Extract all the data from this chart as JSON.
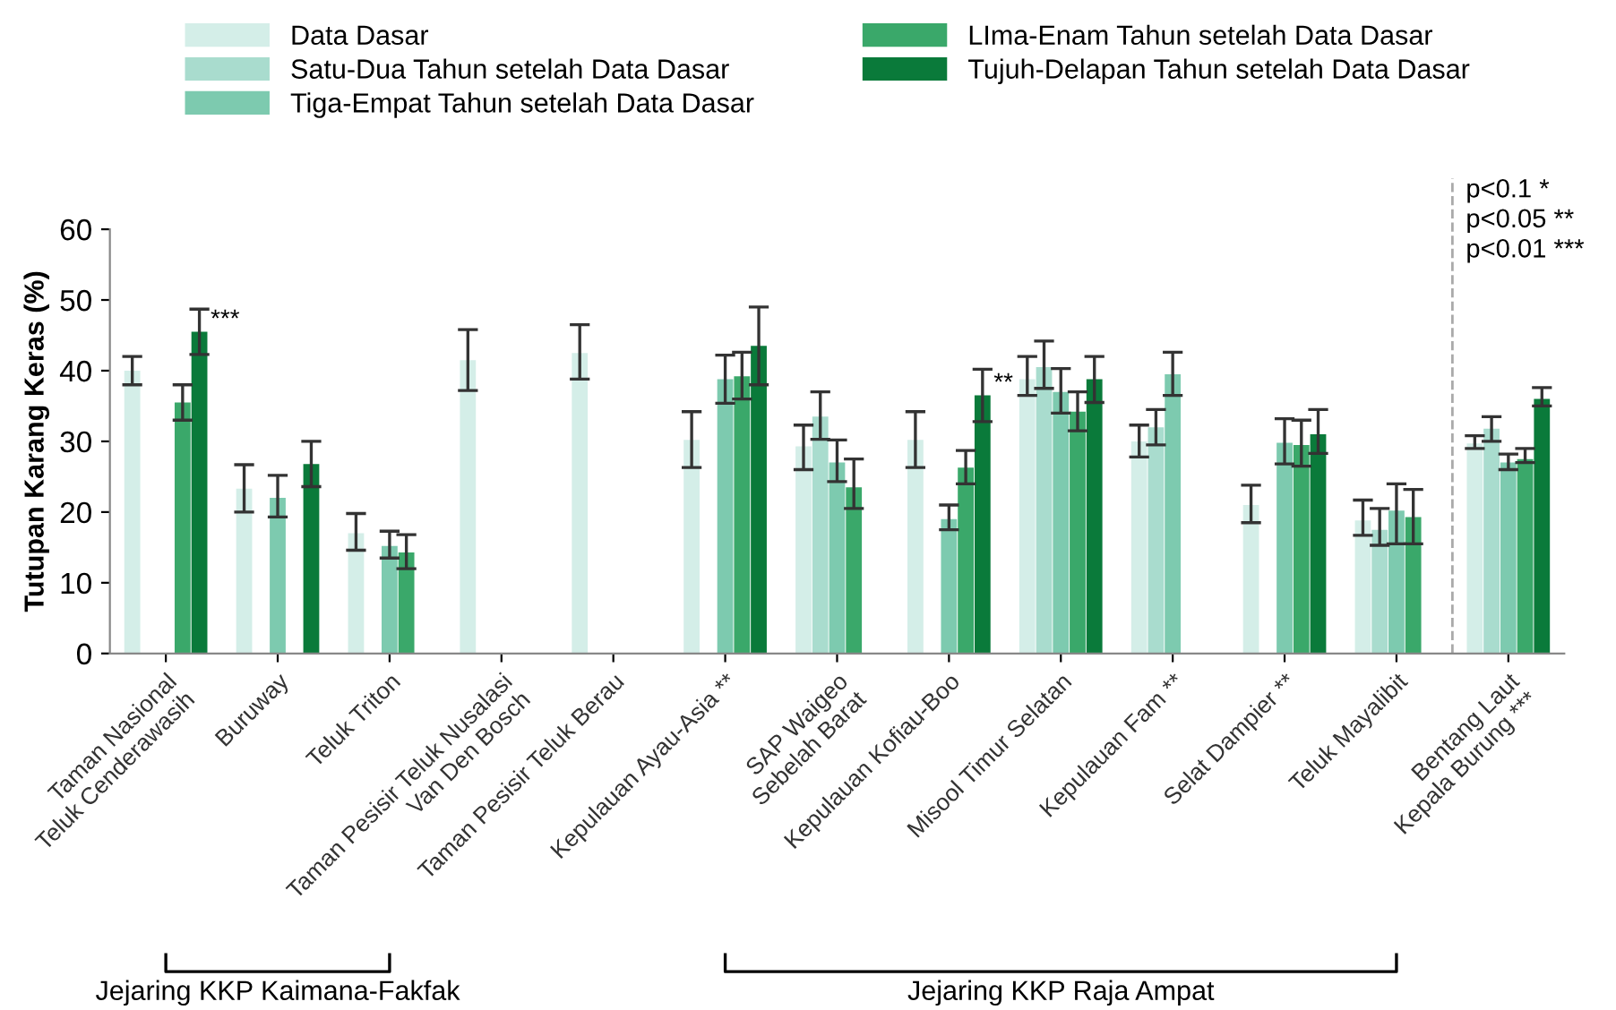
{
  "chart_data": {
    "type": "bar",
    "ylabel": "Tutupan Karang Keras (%)",
    "categories": [
      "Taman Nasional\nTeluk Cenderawasih",
      "Buruway",
      "Teluk Triton",
      "Taman Pesisir Teluk Nusalasi\nVan Den Bosch",
      "Taman Pesisir Teluk Berau",
      "Kepulauan Ayau-Asia **",
      "SAP Waigeo\nSebelah Barat",
      "Kepulauan Kofiau-Boo",
      "Misool Timur Selatan",
      "Kepulauan Fam **",
      "Selat Dampier **",
      "Teluk Mayalibit",
      "Bentang Laut\nKepala Burung ***"
    ],
    "series": [
      {
        "name": "Data Dasar",
        "color": "#d4eee8",
        "values": [
          40,
          23.3,
          17,
          41.5,
          42.5,
          30.2,
          29.3,
          30.2,
          38.8,
          30,
          21,
          18.8,
          29.7
        ],
        "errors": [
          [
            38,
            42
          ],
          [
            20,
            26.7
          ],
          [
            14.6,
            19.8
          ],
          [
            37.2,
            45.8
          ],
          [
            38.8,
            46.5
          ],
          [
            26.3,
            34.2
          ],
          [
            26,
            32.3
          ],
          [
            26.3,
            34.2
          ],
          [
            36.5,
            42
          ],
          [
            27.8,
            32.3
          ],
          [
            18.5,
            23.8
          ],
          [
            16.7,
            21.7
          ],
          [
            29,
            30.8
          ]
        ]
      },
      {
        "name": "Satu-Dua Tahun setelah Data Dasar",
        "color": "#a9dcce",
        "values": [
          null,
          null,
          null,
          null,
          null,
          null,
          33.5,
          null,
          40.5,
          32,
          null,
          17.5,
          31.8
        ],
        "errors": [
          null,
          null,
          null,
          null,
          null,
          null,
          [
            30.3,
            37
          ],
          null,
          [
            37.5,
            44.2
          ],
          [
            29.5,
            34.5
          ],
          null,
          [
            15.3,
            20.5
          ],
          [
            30,
            33.5
          ]
        ]
      },
      {
        "name": "Tiga-Empat Tahun setelah Data Dasar",
        "color": "#7dcaaf",
        "values": [
          null,
          22,
          15.2,
          null,
          null,
          38.8,
          27,
          19,
          37,
          39.5,
          29.8,
          20.2,
          27
        ],
        "errors": [
          null,
          [
            19.3,
            25.2
          ],
          [
            13.5,
            17.3
          ],
          null,
          null,
          [
            35.4,
            42.2
          ],
          [
            24.3,
            30.2
          ],
          [
            17.5,
            21
          ],
          [
            34,
            40.3
          ],
          [
            36.5,
            42.6
          ],
          [
            26.8,
            33.2
          ],
          [
            15.5,
            24
          ],
          [
            26,
            28.2
          ]
        ]
      },
      {
        "name": "LIma-Enam Tahun setelah Data Dasar",
        "color": "#3aa86a",
        "values": [
          35.5,
          null,
          14.3,
          null,
          null,
          39.2,
          23.5,
          26.3,
          34.2,
          null,
          29.5,
          19.3,
          27.5
        ],
        "errors": [
          [
            33,
            38
          ],
          null,
          [
            12,
            16.8
          ],
          null,
          null,
          [
            36,
            42.6
          ],
          [
            20.5,
            27.5
          ],
          [
            24,
            28.7
          ],
          [
            31.5,
            37
          ],
          null,
          [
            26.5,
            33
          ],
          [
            15.5,
            23.2
          ],
          [
            27,
            29
          ]
        ]
      },
      {
        "name": "Tujuh-Delapan Tahun setelah Data Dasar",
        "color": "#0a7a3a",
        "values": [
          45.5,
          26.8,
          null,
          null,
          null,
          43.5,
          null,
          36.5,
          38.8,
          null,
          31,
          null,
          36
        ],
        "errors": [
          [
            42.3,
            48.7
          ],
          [
            23.6,
            30
          ],
          null,
          null,
          null,
          [
            38,
            49
          ],
          null,
          [
            32.8,
            40.2
          ],
          [
            35.5,
            42
          ],
          null,
          [
            28.3,
            34.5
          ],
          null,
          [
            35,
            37.6
          ]
        ]
      }
    ],
    "ylim": [
      0,
      60
    ],
    "yticks": [
      0,
      10,
      20,
      30,
      40,
      50,
      60
    ],
    "annotations": [
      "***",
      "**",
      "p<0.1 *\np<0.05 **\np<0.01 ***",
      "Jejaring KKP Kaimana-Fakfak",
      "Jejaring KKP Raja Ampat"
    ],
    "legend": "top left",
    "grid": false
  }
}
